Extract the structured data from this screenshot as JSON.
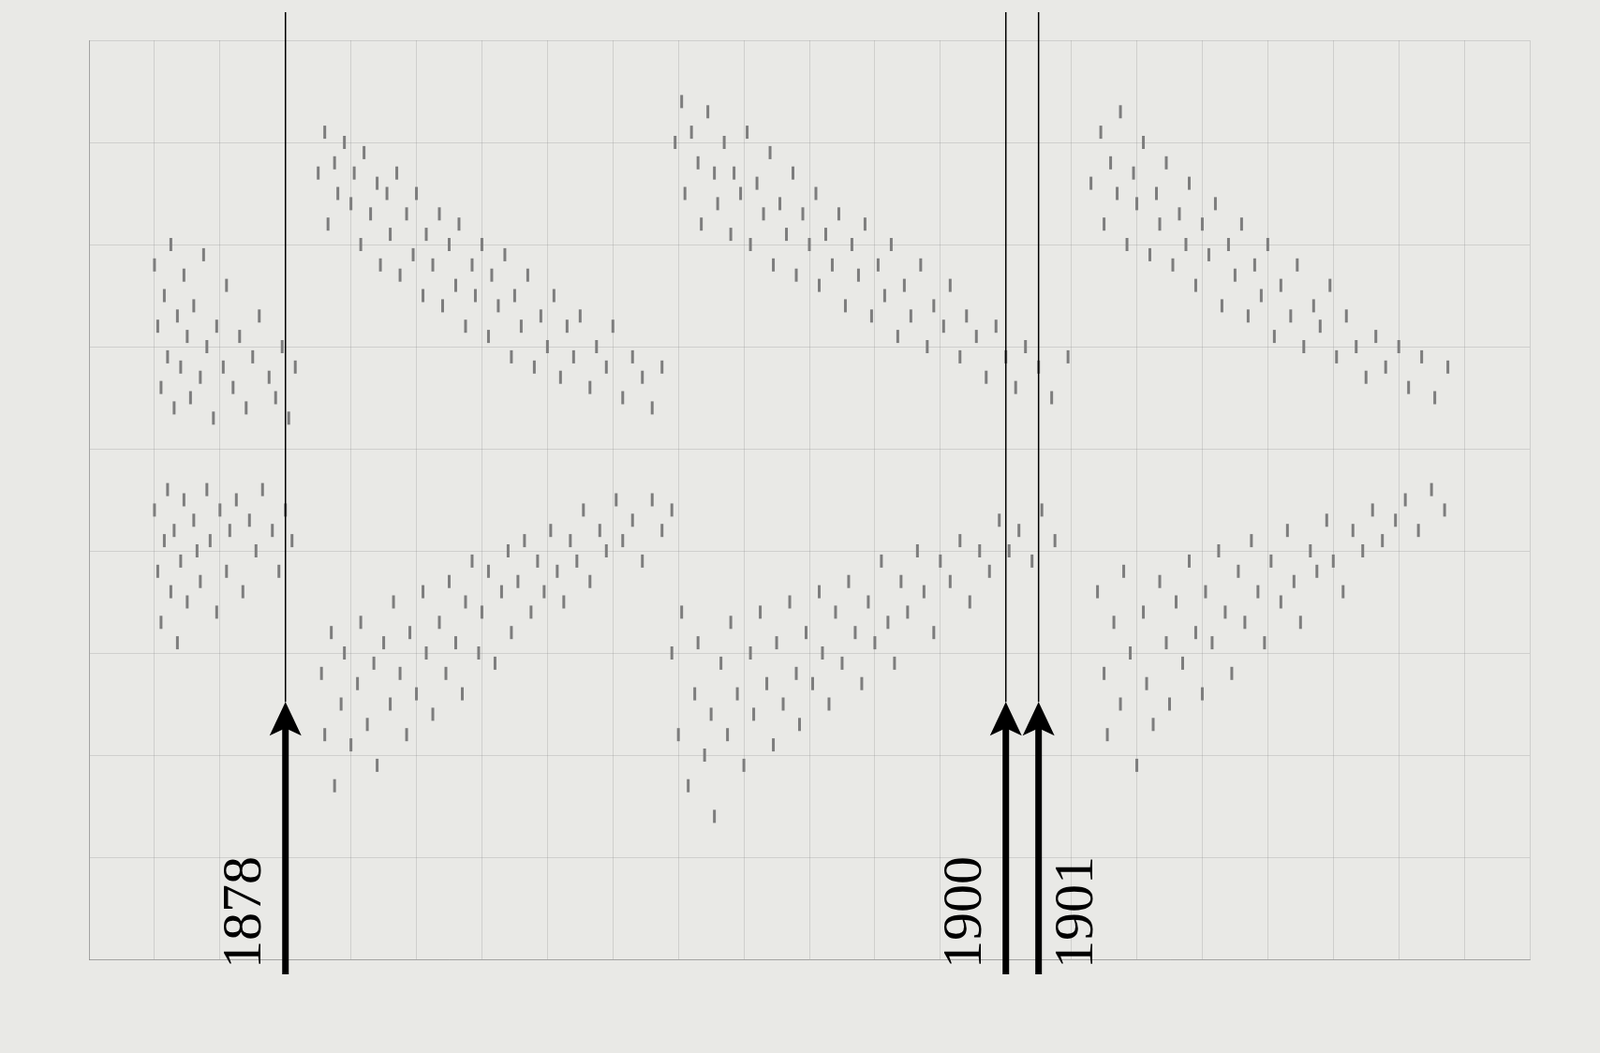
{
  "chart_data": {
    "type": "scatter",
    "color": "#7d7d7d",
    "marker": "dash",
    "grid": true,
    "tick_labels": false,
    "xlim": [
      1872,
      1916
    ],
    "xticks": [
      1872,
      1874,
      1876,
      1878,
      1880,
      1882,
      1884,
      1886,
      1888,
      1890,
      1892,
      1894,
      1896,
      1898,
      1900,
      1902,
      1904,
      1906,
      1908,
      1910,
      1912,
      1914,
      1916
    ],
    "ylim": [
      -50,
      40
    ],
    "yticks": [
      -50,
      -40,
      -30,
      -20,
      -10,
      0,
      10,
      20,
      30,
      40
    ],
    "annotations": [
      {
        "x": 1878,
        "text": "1878"
      },
      {
        "x": 1900,
        "text": "1900"
      },
      {
        "x": 1901,
        "text": "1901"
      }
    ],
    "points": [
      [
        1874.0,
        18
      ],
      [
        1874.1,
        12
      ],
      [
        1874.2,
        6
      ],
      [
        1874.3,
        15
      ],
      [
        1874.4,
        9
      ],
      [
        1874.5,
        20
      ],
      [
        1874.6,
        4
      ],
      [
        1874.7,
        13
      ],
      [
        1874.8,
        8
      ],
      [
        1874.9,
        17
      ],
      [
        1875.0,
        11
      ],
      [
        1875.1,
        5
      ],
      [
        1875.2,
        14
      ],
      [
        1875.4,
        7
      ],
      [
        1875.5,
        19
      ],
      [
        1875.6,
        10
      ],
      [
        1875.8,
        3
      ],
      [
        1875.9,
        12
      ],
      [
        1876.1,
        8
      ],
      [
        1876.2,
        16
      ],
      [
        1876.4,
        6
      ],
      [
        1876.6,
        11
      ],
      [
        1876.8,
        4
      ],
      [
        1877.0,
        9
      ],
      [
        1877.2,
        13
      ],
      [
        1877.5,
        7
      ],
      [
        1877.7,
        5
      ],
      [
        1877.9,
        10
      ],
      [
        1878.1,
        3
      ],
      [
        1878.3,
        8
      ],
      [
        1874.0,
        -6
      ],
      [
        1874.1,
        -12
      ],
      [
        1874.2,
        -17
      ],
      [
        1874.3,
        -9
      ],
      [
        1874.4,
        -4
      ],
      [
        1874.5,
        -14
      ],
      [
        1874.6,
        -8
      ],
      [
        1874.7,
        -19
      ],
      [
        1874.8,
        -11
      ],
      [
        1874.9,
        -5
      ],
      [
        1875.0,
        -15
      ],
      [
        1875.2,
        -7
      ],
      [
        1875.3,
        -10
      ],
      [
        1875.4,
        -13
      ],
      [
        1875.6,
        -4
      ],
      [
        1875.7,
        -9
      ],
      [
        1875.9,
        -16
      ],
      [
        1876.0,
        -6
      ],
      [
        1876.2,
        -12
      ],
      [
        1876.3,
        -8
      ],
      [
        1876.5,
        -5
      ],
      [
        1876.7,
        -14
      ],
      [
        1876.9,
        -7
      ],
      [
        1877.1,
        -10
      ],
      [
        1877.3,
        -4
      ],
      [
        1877.6,
        -8
      ],
      [
        1877.8,
        -12
      ],
      [
        1878.0,
        -6
      ],
      [
        1878.2,
        -9
      ],
      [
        1879.0,
        27
      ],
      [
        1879.2,
        31
      ],
      [
        1879.3,
        22
      ],
      [
        1879.5,
        28
      ],
      [
        1879.6,
        25
      ],
      [
        1879.8,
        30
      ],
      [
        1880.0,
        24
      ],
      [
        1880.1,
        27
      ],
      [
        1880.3,
        20
      ],
      [
        1880.4,
        29
      ],
      [
        1880.6,
        23
      ],
      [
        1880.8,
        26
      ],
      [
        1880.9,
        18
      ],
      [
        1881.1,
        25
      ],
      [
        1881.2,
        21
      ],
      [
        1881.4,
        27
      ],
      [
        1881.5,
        17
      ],
      [
        1881.7,
        23
      ],
      [
        1881.9,
        19
      ],
      [
        1882.0,
        25
      ],
      [
        1882.2,
        15
      ],
      [
        1882.3,
        21
      ],
      [
        1882.5,
        18
      ],
      [
        1882.7,
        23
      ],
      [
        1882.8,
        14
      ],
      [
        1883.0,
        20
      ],
      [
        1883.2,
        16
      ],
      [
        1883.3,
        22
      ],
      [
        1883.5,
        12
      ],
      [
        1883.7,
        18
      ],
      [
        1883.8,
        15
      ],
      [
        1884.0,
        20
      ],
      [
        1884.2,
        11
      ],
      [
        1884.3,
        17
      ],
      [
        1884.5,
        14
      ],
      [
        1884.7,
        19
      ],
      [
        1884.9,
        9
      ],
      [
        1885.0,
        15
      ],
      [
        1885.2,
        12
      ],
      [
        1885.4,
        17
      ],
      [
        1885.6,
        8
      ],
      [
        1885.8,
        13
      ],
      [
        1886.0,
        10
      ],
      [
        1886.2,
        15
      ],
      [
        1886.4,
        7
      ],
      [
        1886.6,
        12
      ],
      [
        1886.8,
        9
      ],
      [
        1887.0,
        13
      ],
      [
        1887.3,
        6
      ],
      [
        1887.5,
        10
      ],
      [
        1887.8,
        8
      ],
      [
        1888.0,
        12
      ],
      [
        1888.3,
        5
      ],
      [
        1888.6,
        9
      ],
      [
        1888.9,
        7
      ],
      [
        1889.2,
        4
      ],
      [
        1889.5,
        8
      ],
      [
        1879.1,
        -22
      ],
      [
        1879.2,
        -28
      ],
      [
        1879.4,
        -18
      ],
      [
        1879.5,
        -33
      ],
      [
        1879.7,
        -25
      ],
      [
        1879.8,
        -20
      ],
      [
        1880.0,
        -29
      ],
      [
        1880.2,
        -23
      ],
      [
        1880.3,
        -17
      ],
      [
        1880.5,
        -27
      ],
      [
        1880.7,
        -21
      ],
      [
        1880.8,
        -31
      ],
      [
        1881.0,
        -19
      ],
      [
        1881.2,
        -25
      ],
      [
        1881.3,
        -15
      ],
      [
        1881.5,
        -22
      ],
      [
        1881.7,
        -28
      ],
      [
        1881.8,
        -18
      ],
      [
        1882.0,
        -24
      ],
      [
        1882.2,
        -14
      ],
      [
        1882.3,
        -20
      ],
      [
        1882.5,
        -26
      ],
      [
        1882.7,
        -17
      ],
      [
        1882.9,
        -22
      ],
      [
        1883.0,
        -13
      ],
      [
        1883.2,
        -19
      ],
      [
        1883.4,
        -24
      ],
      [
        1883.5,
        -15
      ],
      [
        1883.7,
        -11
      ],
      [
        1883.9,
        -20
      ],
      [
        1884.0,
        -16
      ],
      [
        1884.2,
        -12
      ],
      [
        1884.4,
        -21
      ],
      [
        1884.6,
        -14
      ],
      [
        1884.8,
        -10
      ],
      [
        1884.9,
        -18
      ],
      [
        1885.1,
        -13
      ],
      [
        1885.3,
        -9
      ],
      [
        1885.5,
        -16
      ],
      [
        1885.7,
        -11
      ],
      [
        1885.9,
        -14
      ],
      [
        1886.1,
        -8
      ],
      [
        1886.3,
        -12
      ],
      [
        1886.5,
        -15
      ],
      [
        1886.7,
        -9
      ],
      [
        1886.9,
        -11
      ],
      [
        1887.1,
        -6
      ],
      [
        1887.3,
        -13
      ],
      [
        1887.6,
        -8
      ],
      [
        1887.8,
        -10
      ],
      [
        1888.1,
        -5
      ],
      [
        1888.3,
        -9
      ],
      [
        1888.6,
        -7
      ],
      [
        1888.9,
        -11
      ],
      [
        1889.2,
        -5
      ],
      [
        1889.5,
        -8
      ],
      [
        1889.8,
        -6
      ],
      [
        1889.9,
        30
      ],
      [
        1890.1,
        34
      ],
      [
        1890.2,
        25
      ],
      [
        1890.4,
        31
      ],
      [
        1890.6,
        28
      ],
      [
        1890.7,
        22
      ],
      [
        1890.9,
        33
      ],
      [
        1891.1,
        27
      ],
      [
        1891.2,
        24
      ],
      [
        1891.4,
        30
      ],
      [
        1891.6,
        21
      ],
      [
        1891.7,
        27
      ],
      [
        1891.9,
        25
      ],
      [
        1892.1,
        31
      ],
      [
        1892.2,
        20
      ],
      [
        1892.4,
        26
      ],
      [
        1892.6,
        23
      ],
      [
        1892.8,
        29
      ],
      [
        1892.9,
        18
      ],
      [
        1893.1,
        24
      ],
      [
        1893.3,
        21
      ],
      [
        1893.5,
        27
      ],
      [
        1893.6,
        17
      ],
      [
        1893.8,
        23
      ],
      [
        1894.0,
        20
      ],
      [
        1894.2,
        25
      ],
      [
        1894.3,
        16
      ],
      [
        1894.5,
        21
      ],
      [
        1894.7,
        18
      ],
      [
        1894.9,
        23
      ],
      [
        1895.1,
        14
      ],
      [
        1895.3,
        20
      ],
      [
        1895.5,
        17
      ],
      [
        1895.7,
        22
      ],
      [
        1895.9,
        13
      ],
      [
        1896.1,
        18
      ],
      [
        1896.3,
        15
      ],
      [
        1896.5,
        20
      ],
      [
        1896.7,
        11
      ],
      [
        1896.9,
        16
      ],
      [
        1897.1,
        13
      ],
      [
        1897.4,
        18
      ],
      [
        1897.6,
        10
      ],
      [
        1897.8,
        14
      ],
      [
        1898.1,
        12
      ],
      [
        1898.3,
        16
      ],
      [
        1898.6,
        9
      ],
      [
        1898.8,
        13
      ],
      [
        1899.1,
        11
      ],
      [
        1899.4,
        7
      ],
      [
        1899.7,
        12
      ],
      [
        1900.0,
        9
      ],
      [
        1900.3,
        6
      ],
      [
        1900.6,
        10
      ],
      [
        1901.0,
        8
      ],
      [
        1901.4,
        5
      ],
      [
        1901.9,
        9
      ],
      [
        1889.8,
        -20
      ],
      [
        1890.0,
        -28
      ],
      [
        1890.1,
        -16
      ],
      [
        1890.3,
        -33
      ],
      [
        1890.5,
        -24
      ],
      [
        1890.6,
        -19
      ],
      [
        1890.8,
        -30
      ],
      [
        1891.0,
        -26
      ],
      [
        1891.1,
        -36
      ],
      [
        1891.3,
        -21
      ],
      [
        1891.5,
        -28
      ],
      [
        1891.6,
        -17
      ],
      [
        1891.8,
        -24
      ],
      [
        1892.0,
        -31
      ],
      [
        1892.2,
        -20
      ],
      [
        1892.3,
        -26
      ],
      [
        1892.5,
        -16
      ],
      [
        1892.7,
        -23
      ],
      [
        1892.9,
        -29
      ],
      [
        1893.0,
        -19
      ],
      [
        1893.2,
        -25
      ],
      [
        1893.4,
        -15
      ],
      [
        1893.6,
        -22
      ],
      [
        1893.7,
        -27
      ],
      [
        1893.9,
        -18
      ],
      [
        1894.1,
        -23
      ],
      [
        1894.3,
        -14
      ],
      [
        1894.4,
        -20
      ],
      [
        1894.6,
        -25
      ],
      [
        1894.8,
        -16
      ],
      [
        1895.0,
        -21
      ],
      [
        1895.2,
        -13
      ],
      [
        1895.4,
        -18
      ],
      [
        1895.6,
        -23
      ],
      [
        1895.8,
        -15
      ],
      [
        1896.0,
        -19
      ],
      [
        1896.2,
        -11
      ],
      [
        1896.4,
        -17
      ],
      [
        1896.6,
        -21
      ],
      [
        1896.8,
        -13
      ],
      [
        1897.0,
        -16
      ],
      [
        1897.3,
        -10
      ],
      [
        1897.5,
        -14
      ],
      [
        1897.8,
        -18
      ],
      [
        1898.0,
        -11
      ],
      [
        1898.3,
        -13
      ],
      [
        1898.6,
        -9
      ],
      [
        1898.9,
        -15
      ],
      [
        1899.2,
        -10
      ],
      [
        1899.5,
        -12
      ],
      [
        1899.8,
        -7
      ],
      [
        1900.1,
        -10
      ],
      [
        1900.4,
        -8
      ],
      [
        1900.8,
        -11
      ],
      [
        1901.1,
        -6
      ],
      [
        1901.5,
        -9
      ],
      [
        1902.6,
        26
      ],
      [
        1902.9,
        31
      ],
      [
        1903.0,
        22
      ],
      [
        1903.2,
        28
      ],
      [
        1903.4,
        25
      ],
      [
        1903.5,
        33
      ],
      [
        1903.7,
        20
      ],
      [
        1903.9,
        27
      ],
      [
        1904.0,
        24
      ],
      [
        1904.2,
        30
      ],
      [
        1904.4,
        19
      ],
      [
        1904.6,
        25
      ],
      [
        1904.7,
        22
      ],
      [
        1904.9,
        28
      ],
      [
        1905.1,
        18
      ],
      [
        1905.3,
        23
      ],
      [
        1905.5,
        20
      ],
      [
        1905.6,
        26
      ],
      [
        1905.8,
        16
      ],
      [
        1906.0,
        22
      ],
      [
        1906.2,
        19
      ],
      [
        1906.4,
        24
      ],
      [
        1906.6,
        14
      ],
      [
        1906.8,
        20
      ],
      [
        1907.0,
        17
      ],
      [
        1907.2,
        22
      ],
      [
        1907.4,
        13
      ],
      [
        1907.6,
        18
      ],
      [
        1907.8,
        15
      ],
      [
        1908.0,
        20
      ],
      [
        1908.2,
        11
      ],
      [
        1908.4,
        16
      ],
      [
        1908.7,
        13
      ],
      [
        1908.9,
        18
      ],
      [
        1909.1,
        10
      ],
      [
        1909.4,
        14
      ],
      [
        1909.6,
        12
      ],
      [
        1909.9,
        16
      ],
      [
        1910.1,
        9
      ],
      [
        1910.4,
        13
      ],
      [
        1910.7,
        10
      ],
      [
        1911.0,
        7
      ],
      [
        1911.3,
        11
      ],
      [
        1911.6,
        8
      ],
      [
        1912.0,
        10
      ],
      [
        1912.3,
        6
      ],
      [
        1912.7,
        9
      ],
      [
        1913.1,
        5
      ],
      [
        1913.5,
        8
      ],
      [
        1902.8,
        -14
      ],
      [
        1903.0,
        -22
      ],
      [
        1903.1,
        -28
      ],
      [
        1903.3,
        -17
      ],
      [
        1903.5,
        -25
      ],
      [
        1903.6,
        -12
      ],
      [
        1903.8,
        -20
      ],
      [
        1904.0,
        -31
      ],
      [
        1904.2,
        -16
      ],
      [
        1904.3,
        -23
      ],
      [
        1904.5,
        -27
      ],
      [
        1904.7,
        -13
      ],
      [
        1904.9,
        -19
      ],
      [
        1905.0,
        -25
      ],
      [
        1905.2,
        -15
      ],
      [
        1905.4,
        -21
      ],
      [
        1905.6,
        -11
      ],
      [
        1905.8,
        -18
      ],
      [
        1906.0,
        -24
      ],
      [
        1906.1,
        -14
      ],
      [
        1906.3,
        -19
      ],
      [
        1906.5,
        -10
      ],
      [
        1906.7,
        -16
      ],
      [
        1906.9,
        -22
      ],
      [
        1907.1,
        -12
      ],
      [
        1907.3,
        -17
      ],
      [
        1907.5,
        -9
      ],
      [
        1907.7,
        -14
      ],
      [
        1907.9,
        -19
      ],
      [
        1908.1,
        -11
      ],
      [
        1908.4,
        -15
      ],
      [
        1908.6,
        -8
      ],
      [
        1908.8,
        -13
      ],
      [
        1909.0,
        -17
      ],
      [
        1909.3,
        -10
      ],
      [
        1909.5,
        -12
      ],
      [
        1909.8,
        -7
      ],
      [
        1910.0,
        -11
      ],
      [
        1910.3,
        -14
      ],
      [
        1910.6,
        -8
      ],
      [
        1910.9,
        -10
      ],
      [
        1911.2,
        -6
      ],
      [
        1911.5,
        -9
      ],
      [
        1911.9,
        -7
      ],
      [
        1912.2,
        -5
      ],
      [
        1912.6,
        -8
      ],
      [
        1913.0,
        -4
      ],
      [
        1913.4,
        -6
      ]
    ]
  }
}
